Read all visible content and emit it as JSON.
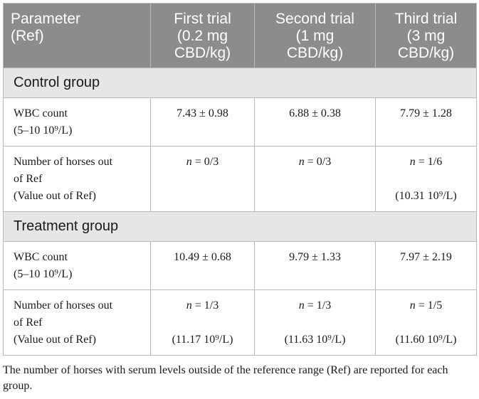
{
  "header": {
    "param": [
      "Parameter",
      "(Ref)"
    ],
    "trial1": [
      "First trial",
      "(0.2 mg",
      "CBD/kg)"
    ],
    "trial2": [
      "Second trial",
      "(1 mg",
      "CBD/kg)"
    ],
    "trial3": [
      "Third trial",
      "(3 mg",
      "CBD/kg)"
    ]
  },
  "groups": {
    "control": {
      "title": "Control group",
      "wbc_label": [
        "WBC count",
        "(5–10 10⁹/L)"
      ],
      "wbc_values": [
        "7.43 ± 0.98",
        "6.88 ± 0.38",
        "7.79 ± 1.28"
      ],
      "num_label": [
        "Number of horses out",
        "of Ref",
        "(Value out of Ref)"
      ],
      "num_values": [
        "n = 0/3",
        "n = 0/3",
        "n = 1/6"
      ],
      "num_out_values": [
        "",
        "",
        "(10.31 10⁹/L)"
      ]
    },
    "treatment": {
      "title": "Treatment group",
      "wbc_label": [
        "WBC count",
        "(5–10 10⁹/L)"
      ],
      "wbc_values": [
        "10.49 ± 0.68",
        "9.79 ± 1.33",
        "7.97 ± 2.19"
      ],
      "num_label": [
        "Number of horses out",
        "of Ref",
        "(Value out of Ref)"
      ],
      "num_values": [
        "n = 1/3",
        "n = 1/3",
        "n = 1/5"
      ],
      "num_out_values": [
        "(11.17 10⁹/L)",
        "(11.63 10⁹/L)",
        "(11.60 10⁹/L)"
      ]
    }
  },
  "footnote": "The number of horses with serum levels outside of the reference range (Ref) are reported for each group."
}
